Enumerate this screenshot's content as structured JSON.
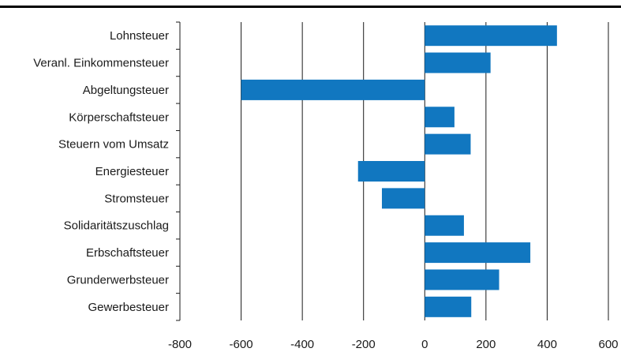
{
  "chart_data": {
    "type": "bar",
    "orientation": "horizontal",
    "title": "",
    "xlabel": "",
    "ylabel": "",
    "xlim": [
      -800,
      600
    ],
    "xticks": [
      -800,
      -600,
      -400,
      -200,
      0,
      200,
      400,
      600
    ],
    "grid": "vertical",
    "bar_color": "#1177c0",
    "categories": [
      "Lohnsteuer",
      "Veranl. Einkommensteuer",
      "Abgeltungsteuer",
      "Körperschaftsteuer",
      "Steuern vom Umsatz",
      "Energiesteuer",
      "Stromsteuer",
      "Solidaritätszuschlag",
      "Erbschaftsteuer",
      "Grunderwerbsteuer",
      "Gewerbesteuer"
    ],
    "values": [
      432,
      215,
      -600,
      97,
      150,
      -218,
      -140,
      128,
      345,
      243,
      152
    ]
  }
}
